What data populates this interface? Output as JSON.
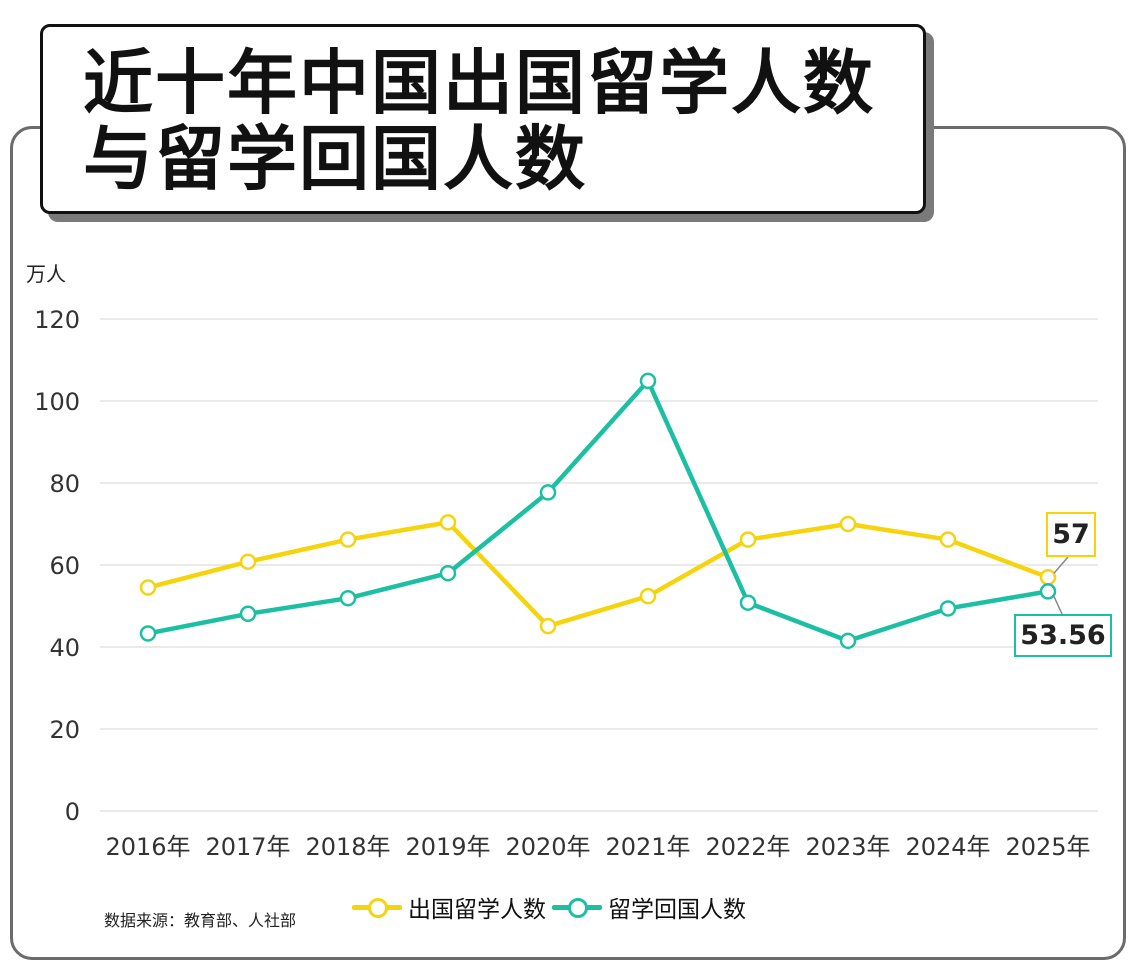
{
  "title": "近十年中国出国留学人数与留学回国人数",
  "unit_label": "万人",
  "source": "数据来源：教育部、人社部",
  "colors": {
    "outbound": "#F5D40E",
    "returned": "#1DBFA2",
    "frame": "#6b6b6b",
    "grid": "#e4e4e4"
  },
  "callouts": {
    "outbound_last": "57",
    "returned_last": "53.56"
  },
  "chart_data": {
    "type": "line",
    "categories": [
      "2016年",
      "2017年",
      "2018年",
      "2019年",
      "2020年",
      "2021年",
      "2022年",
      "2023年",
      "2024年",
      "2025年"
    ],
    "ylabel": "万人",
    "ylim": [
      0,
      120
    ],
    "yticks": [
      0,
      20,
      40,
      60,
      80,
      100,
      120
    ],
    "grid": true,
    "legend_position": "bottom",
    "series": [
      {
        "name": "出国留学人数",
        "color_key": "outbound",
        "values": [
          54.5,
          60.8,
          66.2,
          70.4,
          45.1,
          52.4,
          66.2,
          70.0,
          66.2,
          57
        ]
      },
      {
        "name": "留学回国人数",
        "color_key": "returned",
        "values": [
          43.3,
          48.1,
          51.9,
          58.0,
          77.7,
          104.9,
          50.8,
          41.5,
          49.4,
          53.56
        ]
      }
    ]
  }
}
